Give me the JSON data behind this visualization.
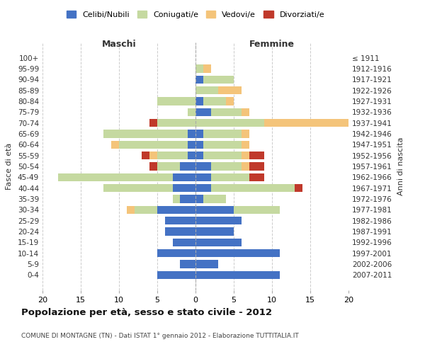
{
  "age_groups": [
    "100+",
    "95-99",
    "90-94",
    "85-89",
    "80-84",
    "75-79",
    "70-74",
    "65-69",
    "60-64",
    "55-59",
    "50-54",
    "45-49",
    "40-44",
    "35-39",
    "30-34",
    "25-29",
    "20-24",
    "15-19",
    "10-14",
    "5-9",
    "0-4"
  ],
  "birth_years": [
    "≤ 1911",
    "1912-1916",
    "1917-1921",
    "1922-1926",
    "1927-1931",
    "1932-1936",
    "1937-1941",
    "1942-1946",
    "1947-1951",
    "1952-1956",
    "1957-1961",
    "1962-1966",
    "1967-1971",
    "1972-1976",
    "1977-1981",
    "1982-1986",
    "1987-1991",
    "1992-1996",
    "1997-2001",
    "2002-2006",
    "2007-2011"
  ],
  "male": {
    "celibi": [
      0,
      0,
      0,
      0,
      0,
      0,
      0,
      1,
      1,
      1,
      2,
      3,
      3,
      2,
      5,
      4,
      4,
      3,
      5,
      2,
      5
    ],
    "coniugati": [
      0,
      0,
      0,
      0,
      5,
      1,
      5,
      11,
      9,
      4,
      3,
      15,
      9,
      1,
      3,
      0,
      0,
      0,
      0,
      0,
      0
    ],
    "vedovi": [
      0,
      0,
      0,
      0,
      0,
      0,
      0,
      0,
      1,
      1,
      0,
      0,
      0,
      0,
      1,
      0,
      0,
      0,
      0,
      0,
      0
    ],
    "divorziati": [
      0,
      0,
      0,
      0,
      0,
      0,
      1,
      0,
      0,
      1,
      1,
      0,
      0,
      0,
      0,
      0,
      0,
      0,
      0,
      0,
      0
    ]
  },
  "female": {
    "nubili": [
      0,
      0,
      1,
      0,
      1,
      2,
      0,
      1,
      1,
      1,
      2,
      2,
      2,
      1,
      5,
      6,
      5,
      6,
      11,
      3,
      11
    ],
    "coniugate": [
      0,
      1,
      4,
      3,
      3,
      4,
      9,
      5,
      5,
      5,
      4,
      5,
      11,
      3,
      6,
      0,
      0,
      0,
      0,
      0,
      0
    ],
    "vedove": [
      0,
      1,
      0,
      3,
      1,
      1,
      11,
      1,
      1,
      1,
      1,
      0,
      0,
      0,
      0,
      0,
      0,
      0,
      0,
      0,
      0
    ],
    "divorziate": [
      0,
      0,
      0,
      0,
      0,
      0,
      0,
      0,
      0,
      2,
      2,
      2,
      1,
      0,
      0,
      0,
      0,
      0,
      0,
      0,
      0
    ]
  },
  "colors": {
    "celibi_nubili": "#4472C4",
    "coniugati": "#C5D9A0",
    "vedovi": "#F4C47A",
    "divorziati": "#C0392B"
  },
  "xlim": 20,
  "title": "Popolazione per età, sesso e stato civile - 2012",
  "subtitle": "COMUNE DI MONTAGNE (TN) - Dati ISTAT 1° gennaio 2012 - Elaborazione TUTTITALIA.IT",
  "ylabel_left": "Fasce di età",
  "ylabel_right": "Anni di nascita",
  "xlabel_maschi": "Maschi",
  "xlabel_femmine": "Femmine"
}
